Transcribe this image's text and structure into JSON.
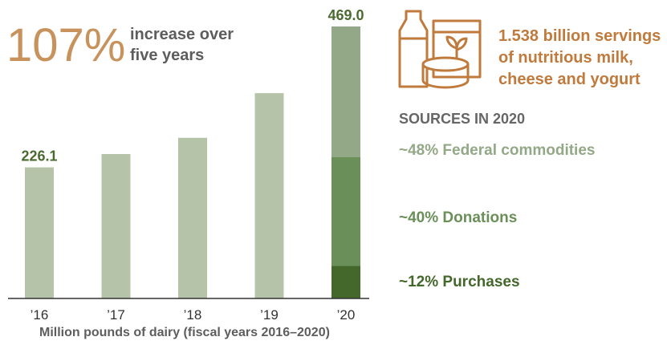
{
  "headline": {
    "figure": "107%",
    "lines": [
      "increase over",
      "five years"
    ]
  },
  "chart_data": {
    "type": "bar",
    "categories": [
      "’16",
      "’17",
      "’18",
      "’19",
      "’20"
    ],
    "values": [
      226.1,
      249,
      277,
      354,
      469
    ],
    "value_labels": [
      "226.1",
      null,
      null,
      null,
      "469.0"
    ],
    "color": "#b5c4a9",
    "x_label": "Million pounds of dairy (fiscal years 2016–2020)",
    "segments": [
      {
        "name": "~48% Federal commodities",
        "value": 225,
        "color": "#93a886"
      },
      {
        "name": "~40% Donations",
        "value": 188,
        "color": "#6a8f58"
      },
      {
        "name": "~12% Purchases",
        "value": 56,
        "color": "#44682b"
      }
    ]
  },
  "servings": [
    "1.538 billion servings",
    "of nutritious milk,",
    "cheese and yogurt"
  ],
  "sources_title": "SOURCES IN 2020"
}
